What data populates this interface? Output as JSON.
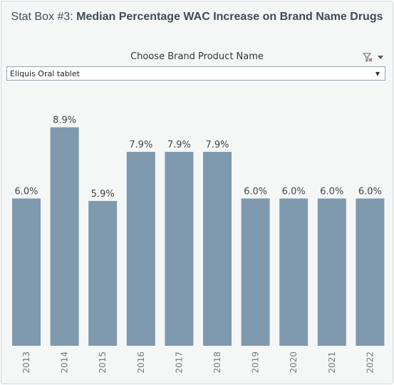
{
  "header": {
    "title_prefix": "Stat Box #3:",
    "title_main": "Median Percentage WAC Increase on Brand Name Drugs"
  },
  "filter": {
    "label": "Choose Brand Product Name",
    "selected": "Eliquis Oral tablet"
  },
  "icons": {
    "filter_clear": "filter-clear-icon",
    "menu": "chevron-down-icon"
  },
  "colors": {
    "bar": "#7f9aae",
    "title": "#3f4b58"
  },
  "chart_data": {
    "type": "bar",
    "categories": [
      "2013",
      "2014",
      "2015",
      "2016",
      "2017",
      "2018",
      "2019",
      "2020",
      "2021",
      "2022"
    ],
    "values": [
      6.0,
      8.9,
      5.9,
      7.9,
      7.9,
      7.9,
      6.0,
      6.0,
      6.0,
      6.0
    ],
    "value_labels": [
      "6.0%",
      "8.9%",
      "5.9%",
      "7.9%",
      "7.9%",
      "7.9%",
      "6.0%",
      "6.0%",
      "6.0%",
      "6.0%"
    ],
    "title": "",
    "xlabel": "",
    "ylabel": "",
    "grid": false,
    "ylim": [
      0,
      10.6
    ]
  }
}
